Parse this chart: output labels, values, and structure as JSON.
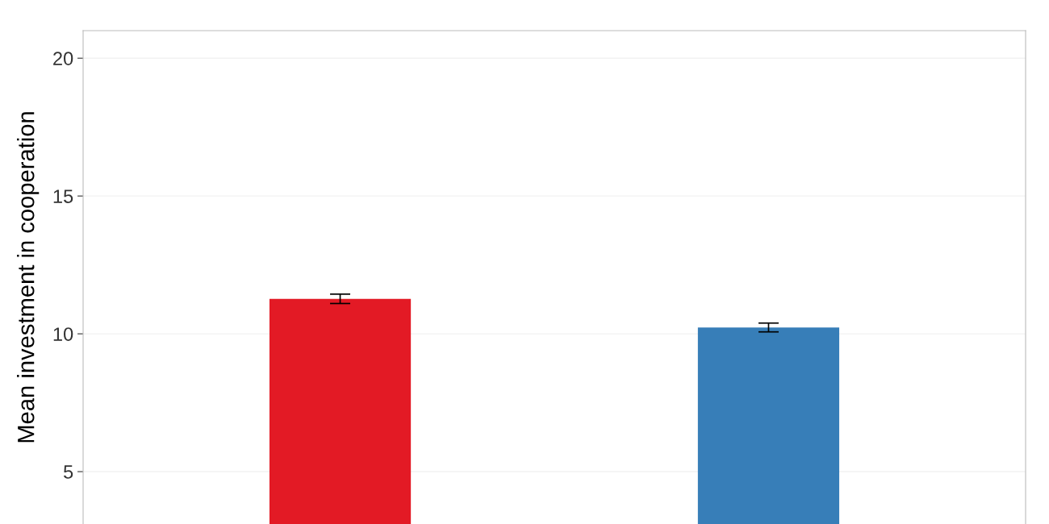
{
  "chart_data": {
    "type": "bar",
    "ylabel": "Mean investment in cooperation",
    "categories": [
      null,
      null
    ],
    "values": [
      11.27,
      10.23
    ],
    "colors": [
      "#e31a25",
      "#377eb8"
    ],
    "errors": [
      0.17,
      0.16
    ],
    "ylim": [
      3.1,
      21
    ],
    "yticks": [
      5,
      10,
      15,
      20
    ],
    "grid": "y",
    "tick_labels": "y"
  }
}
